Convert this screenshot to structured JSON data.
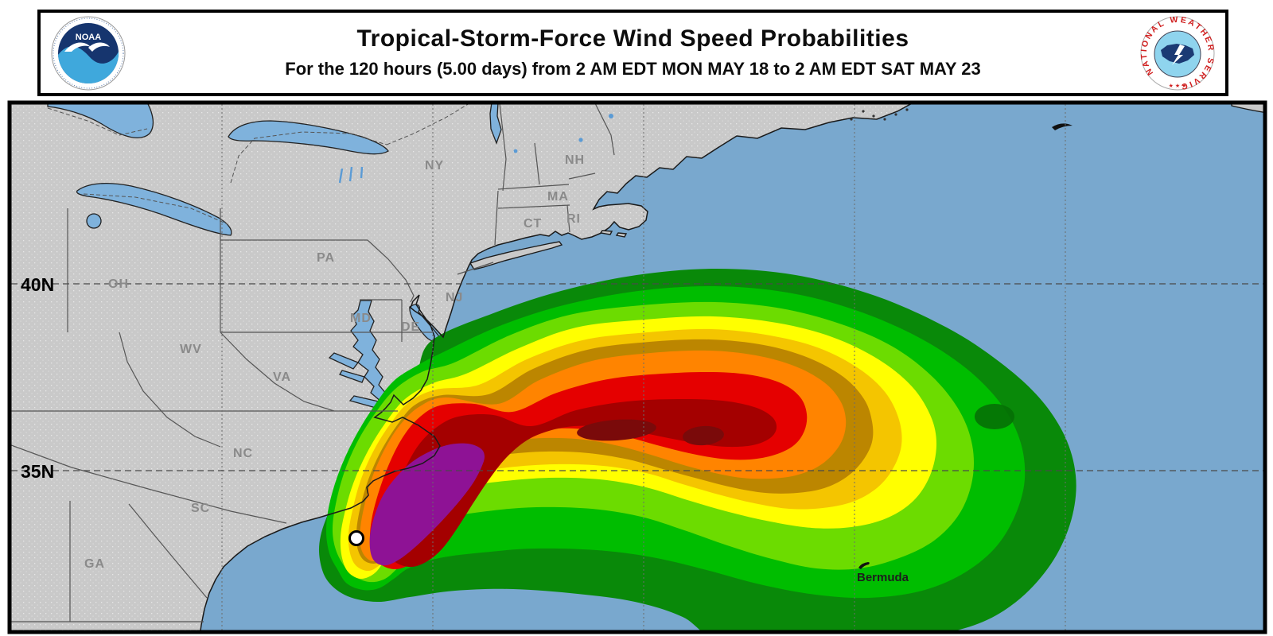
{
  "header": {
    "title": "Tropical-Storm-Force Wind Speed Probabilities",
    "subtitle": "For the 120 hours (5.00 days) from 2 AM EDT MON MAY 18 to 2 AM EDT SAT MAY 23"
  },
  "noaa_logo": {
    "text": "NOAA"
  },
  "nws_logo": {
    "ring_text": "NATIONAL WEATHER SERVICE",
    "stars": "★ ★ ★"
  },
  "map": {
    "labels": {
      "lat_40": "40N",
      "lat_35": "35N",
      "bermuda": "Bermuda",
      "oh": "OH",
      "pa": "PA",
      "wv": "WV",
      "va": "VA",
      "nc": "NC",
      "sc": "SC",
      "ga": "GA",
      "ny": "NY",
      "nj": "NJ",
      "nh": "NH",
      "ma": "MA",
      "ct": "CT",
      "ri": "RI",
      "md": "MD",
      "de": "DE"
    },
    "colors": {
      "ocean": "#79a8ce",
      "land": "#c9c9c9",
      "lake": "#7fb2dc",
      "coast": "#1a1a1a",
      "state_line": "#565656",
      "graticule": "#5a5a5a"
    },
    "bands": [
      {
        "name": "prob-band-dark-green",
        "color": "#098909"
      },
      {
        "name": "prob-band-green",
        "color": "#00bd00"
      },
      {
        "name": "prob-band-lime",
        "color": "#6cdc00"
      },
      {
        "name": "prob-band-yellow",
        "color": "#ffff00"
      },
      {
        "name": "prob-band-gold",
        "color": "#f4c500"
      },
      {
        "name": "prob-band-bronze",
        "color": "#bc8600"
      },
      {
        "name": "prob-band-orange",
        "color": "#ff8400"
      },
      {
        "name": "prob-band-red",
        "color": "#e50000"
      },
      {
        "name": "prob-band-dark-red",
        "color": "#a40000"
      },
      {
        "name": "prob-band-darkest-red",
        "color": "#7a0a0a"
      },
      {
        "name": "prob-band-purple",
        "color": "#8e1295"
      }
    ]
  }
}
